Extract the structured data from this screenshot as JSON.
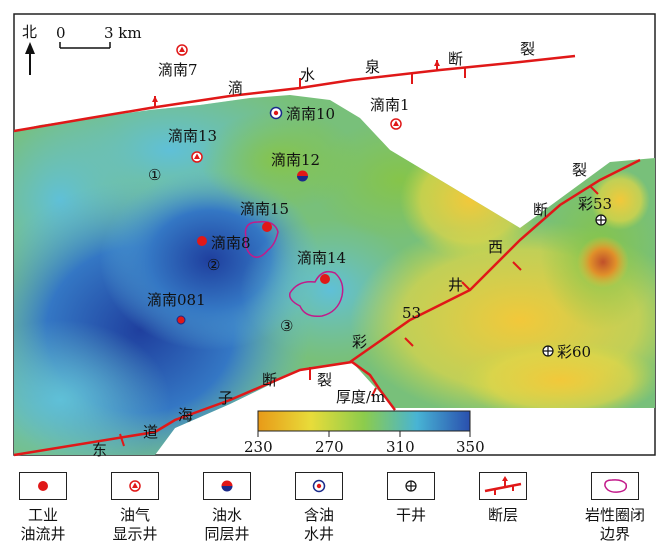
{
  "map": {
    "north_label": "北",
    "scale_label_zero": "0",
    "scale_label_distance": "3 km"
  },
  "faults": {
    "dishuiquan": [
      "滴",
      "水",
      "泉",
      "断",
      "裂"
    ],
    "xijing": [
      "裂",
      "断",
      "西",
      "井",
      "53",
      "彩"
    ],
    "donghaizi": [
      "东",
      "道",
      "海",
      "子",
      "断",
      "裂"
    ]
  },
  "wells": [
    {
      "name": "滴南7",
      "type": "oil_gas_show"
    },
    {
      "name": "滴南10",
      "type": "oil_bearing_water"
    },
    {
      "name": "滴南1",
      "type": "oil_gas_show"
    },
    {
      "name": "滴南13",
      "type": "oil_gas_show"
    },
    {
      "name": "滴南12",
      "type": "oil_water_same"
    },
    {
      "name": "滴南15",
      "type": "industrial_oil"
    },
    {
      "name": "滴南8",
      "type": "industrial_oil"
    },
    {
      "name": "滴南14",
      "type": "industrial_oil"
    },
    {
      "name": "滴南081",
      "type": "oil_bearing_water"
    },
    {
      "name": "彩53",
      "type": "dry"
    },
    {
      "name": "彩60",
      "type": "dry"
    }
  ],
  "zones": [
    "①",
    "②",
    "③"
  ],
  "colorbar": {
    "title": "厚度/m",
    "ticks": [
      "230",
      "270",
      "310",
      "350"
    ],
    "colors": [
      "#e8a51a",
      "#e8d83a",
      "#8cc84a",
      "#4aaed0",
      "#2a55b0"
    ]
  },
  "legend": [
    {
      "label": "工业\n油流井",
      "icon": "industrial-oil-well-icon"
    },
    {
      "label": "油气\n显示井",
      "icon": "oil-gas-show-well-icon"
    },
    {
      "label": "油水\n同层井",
      "icon": "oil-water-well-icon"
    },
    {
      "label": "含油\n水井",
      "icon": "oil-bearing-water-well-icon"
    },
    {
      "label": "干井",
      "icon": "dry-well-icon"
    },
    {
      "label": "断层",
      "icon": "fault-icon"
    },
    {
      "label": "岩性圈闭\n边界",
      "icon": "trap-boundary-icon"
    }
  ]
}
